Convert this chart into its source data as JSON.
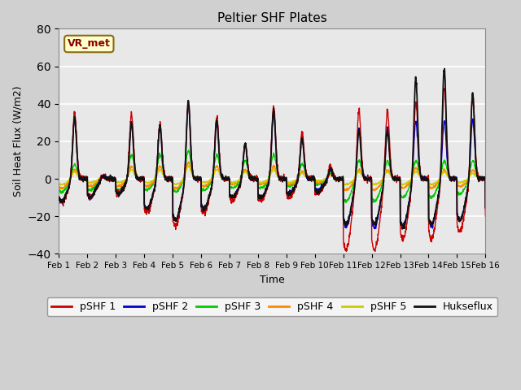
{
  "title": "Peltier SHF Plates",
  "xlabel": "Time",
  "ylabel": "Soil Heat Flux (W/m2)",
  "xlim": [
    0,
    15
  ],
  "ylim": [
    -40,
    80
  ],
  "yticks": [
    -40,
    -20,
    0,
    20,
    40,
    60,
    80
  ],
  "xtick_labels": [
    "Feb 1",
    "Feb 2",
    "Feb 3",
    "Feb 4",
    "Feb 5",
    "Feb 6",
    "Feb 7",
    "Feb 8",
    "Feb 9",
    "Feb 10",
    "Feb 11",
    "Feb 12",
    "Feb 13",
    "Feb 14",
    "Feb 15",
    "Feb 16"
  ],
  "xtick_positions": [
    0,
    1,
    2,
    3,
    4,
    5,
    6,
    7,
    8,
    9,
    10,
    11,
    12,
    13,
    14,
    15
  ],
  "legend_labels": [
    "pSHF 1",
    "pSHF 2",
    "pSHF 3",
    "pSHF 4",
    "pSHF 5",
    "Hukseflux"
  ],
  "legend_colors": [
    "#cc0000",
    "#0000cc",
    "#00cc00",
    "#ff8800",
    "#cccc00",
    "#111111"
  ],
  "annotation_text": "VR_met",
  "background_color": "#e8e8e8",
  "fig_facecolor": "#d0d0d0",
  "grid_color": "#ffffff",
  "linewidth": 1.0,
  "n_points": 2000
}
